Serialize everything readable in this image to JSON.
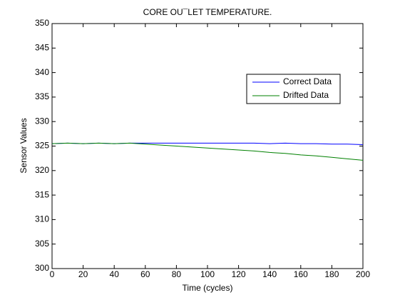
{
  "chart_data": {
    "type": "line",
    "title": "CORE OU¯LET TEMPERATURE.",
    "xlabel": "Time (cycles)",
    "ylabel": "Sensor Values",
    "x": [
      0,
      10,
      20,
      30,
      40,
      50,
      60,
      70,
      80,
      90,
      100,
      110,
      120,
      130,
      140,
      150,
      160,
      170,
      180,
      190,
      200
    ],
    "series": [
      {
        "name": "Correct Data",
        "color": "#0000ff",
        "values": [
          325.5,
          325.6,
          325.5,
          325.6,
          325.5,
          325.6,
          325.6,
          325.6,
          325.6,
          325.6,
          325.6,
          325.6,
          325.6,
          325.6,
          325.5,
          325.6,
          325.5,
          325.5,
          325.4,
          325.4,
          325.3
        ]
      },
      {
        "name": "Drifted Data",
        "color": "#008000",
        "values": [
          325.5,
          325.6,
          325.5,
          325.6,
          325.5,
          325.6,
          325.4,
          325.2,
          325.0,
          324.8,
          324.6,
          324.4,
          324.2,
          324.0,
          323.7,
          323.5,
          323.2,
          323.0,
          322.7,
          322.4,
          322.1
        ]
      }
    ],
    "xlim": [
      0,
      200
    ],
    "xticks": [
      0,
      20,
      40,
      60,
      80,
      100,
      120,
      140,
      160,
      180,
      200
    ],
    "ylim": [
      300,
      350
    ],
    "yticks": [
      300,
      305,
      310,
      315,
      320,
      325,
      330,
      335,
      340,
      345,
      350
    ],
    "grid": false,
    "legend_loc": "northeast"
  }
}
